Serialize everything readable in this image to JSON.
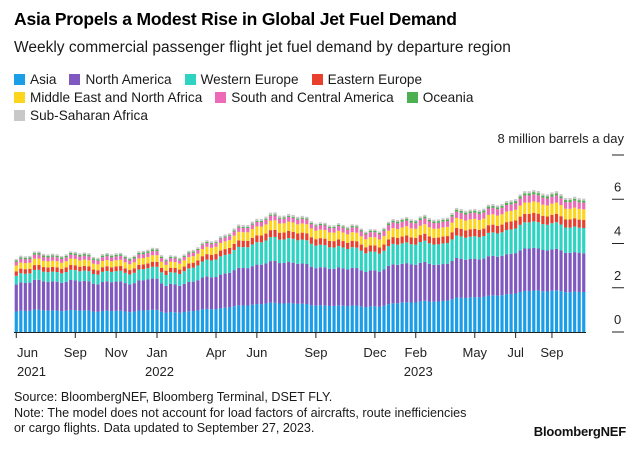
{
  "title": "Asia Propels a Modest Rise in Global Jet Fuel Demand",
  "subtitle": "Weekly commercial passenger flight jet fuel demand by departure region",
  "unit_label": "8 million barrels a day",
  "legend": [
    {
      "name": "Asia",
      "color": "#1a9ee8"
    },
    {
      "name": "North America",
      "color": "#7f58c0"
    },
    {
      "name": "Western Europe",
      "color": "#2ed3c2"
    },
    {
      "name": "Eastern Europe",
      "color": "#e8402d"
    },
    {
      "name": "Middle East and North Africa",
      "color": "#fcd51c"
    },
    {
      "name": "South and Central America",
      "color": "#ec6ab7"
    },
    {
      "name": "Oceania",
      "color": "#4caf50"
    },
    {
      "name": "Sub-Saharan Africa",
      "color": "#c8c8c8"
    }
  ],
  "footer": {
    "source": "Source: BloombergNEF, Bloomberg Terminal, DSET FLY.",
    "note_line1": "Note: The model does not account for load factors of aircrafts, route inefficiencies",
    "note_line2": "or cargo flights. Data updated to September 27, 2023.",
    "brand": "BloombergNEF"
  },
  "chart_data": {
    "type": "bar",
    "stacked": true,
    "ylim": [
      0,
      8
    ],
    "yticks": [
      "0",
      "2",
      "4",
      "6"
    ],
    "grid": false,
    "legend_position": "top",
    "month_ticks": [
      {
        "label": "Jun",
        "week": 0
      },
      {
        "label": "Sep",
        "week": 13
      },
      {
        "label": "Nov",
        "week": 22
      },
      {
        "label": "Jan",
        "week": 31
      },
      {
        "label": "Apr",
        "week": 44
      },
      {
        "label": "Jun",
        "week": 53
      },
      {
        "label": "Sep",
        "week": 66
      },
      {
        "label": "Dec",
        "week": 79
      },
      {
        "label": "Feb",
        "week": 88
      },
      {
        "label": "May",
        "week": 101
      },
      {
        "label": "Jul",
        "week": 110
      },
      {
        "label": "Sep",
        "week": 118
      }
    ],
    "year_ticks": [
      {
        "label": "2021",
        "week": 0
      },
      {
        "label": "2022",
        "week": 31
      },
      {
        "label": "2023",
        "week": 88
      }
    ],
    "total_anchors": [
      [
        0,
        3.25
      ],
      [
        4,
        3.65
      ],
      [
        8,
        3.45
      ],
      [
        10,
        3.55
      ],
      [
        13,
        3.6
      ],
      [
        18,
        3.45
      ],
      [
        22,
        3.55
      ],
      [
        26,
        3.45
      ],
      [
        29,
        3.75
      ],
      [
        31,
        3.8
      ],
      [
        33,
        3.35
      ],
      [
        36,
        3.4
      ],
      [
        40,
        3.9
      ],
      [
        44,
        4.2
      ],
      [
        48,
        4.65
      ],
      [
        53,
        5.1
      ],
      [
        57,
        5.35
      ],
      [
        61,
        5.3
      ],
      [
        66,
        5.0
      ],
      [
        70,
        4.8
      ],
      [
        74,
        4.9
      ],
      [
        77,
        4.55
      ],
      [
        80,
        4.65
      ],
      [
        83,
        5.05
      ],
      [
        86,
        5.15
      ],
      [
        90,
        5.2
      ],
      [
        93,
        5.05
      ],
      [
        97,
        5.5
      ],
      [
        101,
        5.55
      ],
      [
        105,
        5.7
      ],
      [
        108,
        5.9
      ],
      [
        112,
        6.25
      ],
      [
        114,
        6.5
      ],
      [
        116,
        6.25
      ],
      [
        118,
        6.3
      ],
      [
        122,
        6.1
      ],
      [
        125,
        6.05
      ]
    ],
    "share_anchors": [
      {
        "week": 0,
        "shares": [
          0.28,
          0.37,
          0.12,
          0.06,
          0.08,
          0.05,
          0.02,
          0.02
        ]
      },
      {
        "week": 30,
        "shares": [
          0.27,
          0.38,
          0.14,
          0.06,
          0.08,
          0.05,
          0.02,
          0.02
        ]
      },
      {
        "week": 44,
        "shares": [
          0.25,
          0.35,
          0.19,
          0.06,
          0.08,
          0.04,
          0.01,
          0.02
        ]
      },
      {
        "week": 66,
        "shares": [
          0.245,
          0.35,
          0.21,
          0.06,
          0.08,
          0.04,
          0.01,
          0.015
        ]
      },
      {
        "week": 80,
        "shares": [
          0.25,
          0.35,
          0.18,
          0.06,
          0.08,
          0.05,
          0.015,
          0.015
        ]
      },
      {
        "week": 100,
        "shares": [
          0.28,
          0.31,
          0.18,
          0.06,
          0.08,
          0.05,
          0.015,
          0.015
        ]
      },
      {
        "week": 125,
        "shares": [
          0.3,
          0.29,
          0.19,
          0.06,
          0.08,
          0.05,
          0.015,
          0.015
        ]
      }
    ]
  }
}
